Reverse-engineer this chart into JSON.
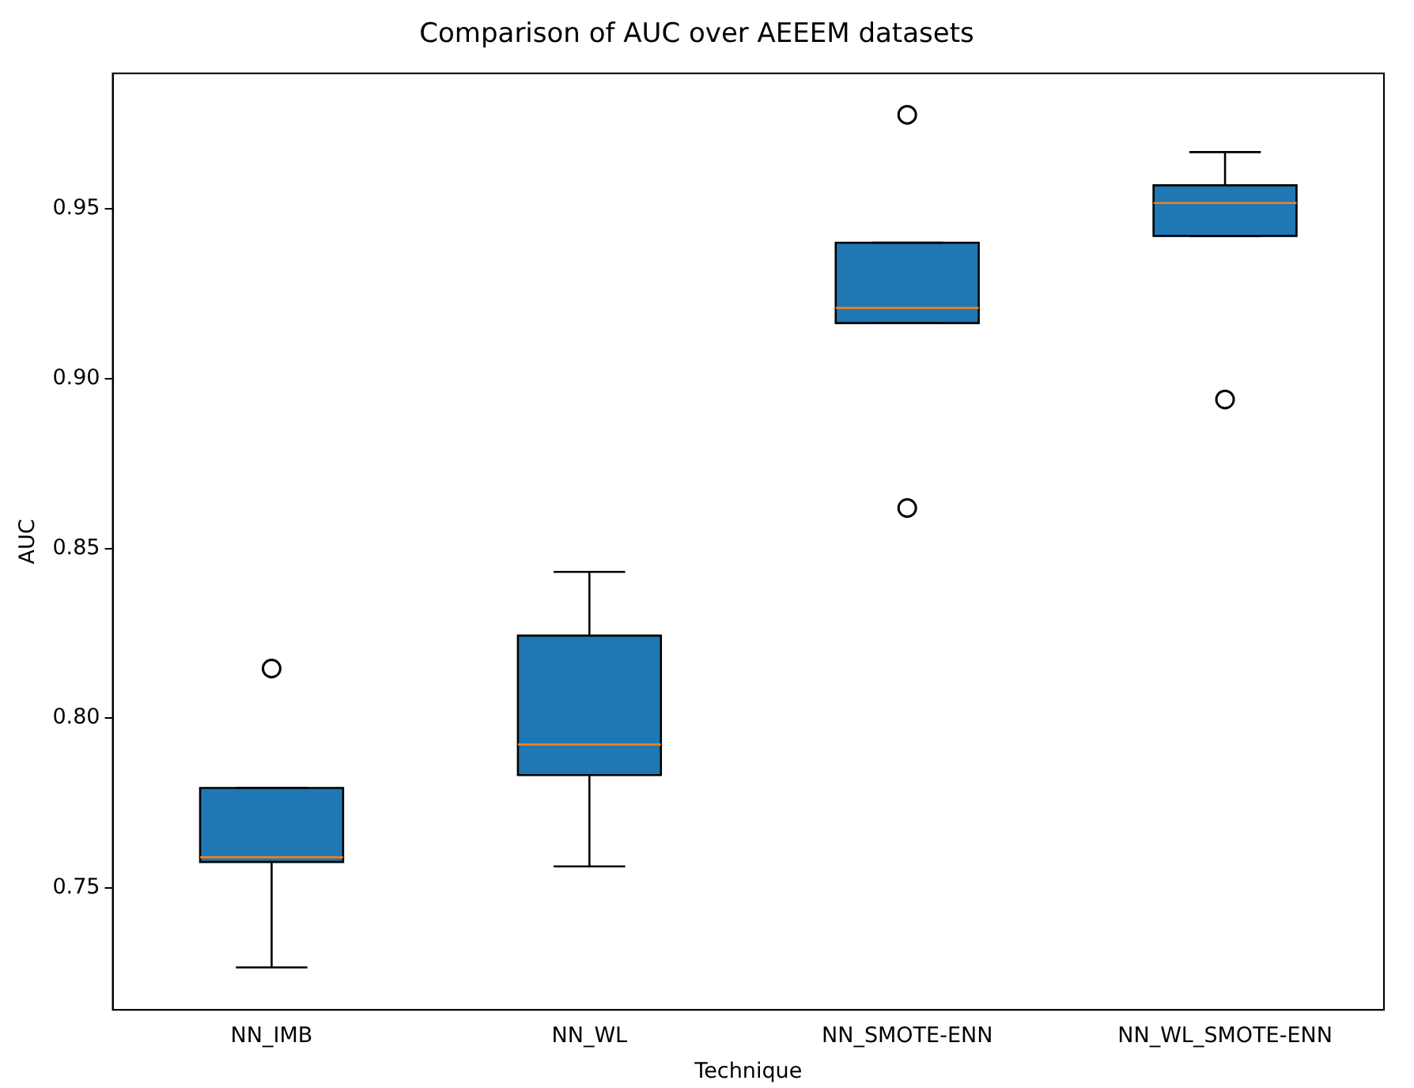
{
  "chart_data": {
    "type": "box",
    "title": "Comparison of AUC over AEEEM datasets",
    "xlabel": "Technique",
    "ylabel": "AUC",
    "color": "#1f77b4",
    "categories": [
      "NN_IMB",
      "NN_WL",
      "NN_SMOTE-ENN",
      "NN_WL_SMOTE-ENN"
    ],
    "boxes": [
      {
        "low": 0.7265,
        "q1": 0.7576,
        "median": 0.759,
        "q3": 0.7794,
        "high": 0.7794,
        "outliers": [
          0.8146
        ]
      },
      {
        "low": 0.7563,
        "q1": 0.7832,
        "median": 0.7922,
        "q3": 0.8243,
        "high": 0.8431
      },
      {
        "low": 0.9164,
        "q1": 0.9164,
        "median": 0.9209,
        "q3": 0.9401,
        "high": 0.9401,
        "outliers": [
          0.9778,
          0.8619
        ]
      },
      {
        "low": 0.9421,
        "q1": 0.9421,
        "median": 0.9518,
        "q3": 0.957,
        "high": 0.9668,
        "outliers": [
          0.8939
        ]
      }
    ],
    "ylim": [
      0.714,
      0.99
    ],
    "yticks": [
      {
        "value": 0.75,
        "label": "0.75"
      },
      {
        "value": 0.8,
        "label": "0.80"
      },
      {
        "value": 0.85,
        "label": "0.85"
      },
      {
        "value": 0.9,
        "label": "0.90"
      },
      {
        "value": 0.95,
        "label": "0.95"
      }
    ],
    "grid": false,
    "legend": false
  }
}
